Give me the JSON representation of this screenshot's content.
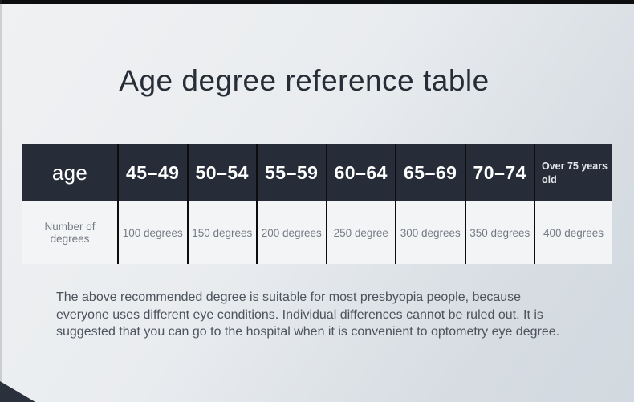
{
  "page": {
    "title": "Age degree reference table",
    "note": "The above recommended degree is suitable for most presbyopia people, because everyone uses different eye conditions. Individual differences cannot be ruled out. It is suggested that you can go to the hospital when it is convenient to optometry eye degree."
  },
  "table": {
    "header_row": [
      "age",
      "45–49",
      "50–54",
      "55–59",
      "60–64",
      "65–69",
      "70–74",
      "Over 75 years old"
    ],
    "body_row": [
      "Number of degrees",
      "100 degrees",
      "150 degrees",
      "200 degrees",
      "250 degree",
      "300 degrees",
      "350 degrees",
      "400 degrees"
    ]
  },
  "chart_data": {
    "type": "table",
    "title": "Age degree reference table",
    "columns": [
      "age",
      "45–49",
      "50–54",
      "55–59",
      "60–64",
      "65–69",
      "70–74",
      "Over 75 years old"
    ],
    "rows": [
      [
        "Number of degrees",
        "100 degrees",
        "150 degrees",
        "200 degrees",
        "250 degree",
        "300 degrees",
        "350 degrees",
        "400 degrees"
      ]
    ],
    "categories": [
      "45–49",
      "50–54",
      "55–59",
      "60–64",
      "65–69",
      "70–74",
      "Over 75 years old"
    ],
    "series": [
      {
        "name": "Number of degrees",
        "values": [
          100,
          150,
          200,
          250,
          300,
          350,
          400
        ]
      }
    ]
  },
  "colors": {
    "header_bg": "#272d38",
    "header_text": "#ffffff",
    "body_bg": "#f3f4f6",
    "body_text": "#757b84",
    "divider": "#0d0d0d",
    "title_text": "#272d36",
    "note_text": "#4d535c",
    "top_bar": "#0c0d0f",
    "corner_wedge": "#2b313c",
    "background_start": "#f0f1f3",
    "background_end": "#d2d9e0"
  }
}
